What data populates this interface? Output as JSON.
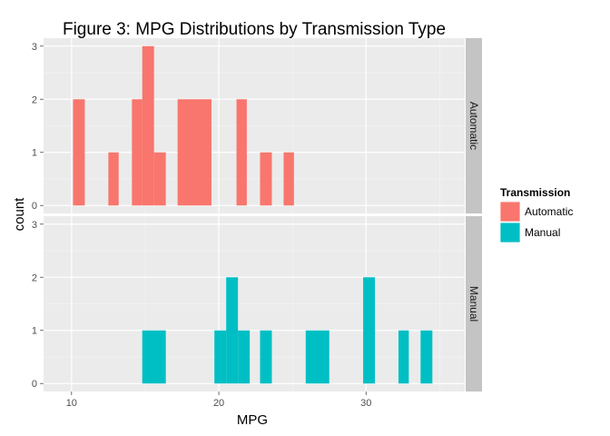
{
  "chart_data": {
    "type": "bar",
    "subtype": "faceted histogram",
    "title": "Figure 3: MPG Distributions by Transmission Type",
    "xlabel": "MPG",
    "ylabel": "count",
    "xlim": [
      8.1,
      36.7
    ],
    "ylim": [
      -0.15,
      3.15
    ],
    "x_ticks": [
      10,
      20,
      30
    ],
    "y_ticks": [
      0,
      1,
      2,
      3
    ],
    "grid": true,
    "bin_width": 0.78,
    "legend": {
      "title": "Transmission",
      "position": "right",
      "items": [
        {
          "label": "Automatic",
          "color": "#F8766D"
        },
        {
          "label": "Manual",
          "color": "#00BFC4"
        }
      ]
    },
    "facets": [
      {
        "label": "Automatic",
        "color": "#F8766D",
        "bins": [
          {
            "x0": 10.1,
            "x1": 10.9,
            "count": 2
          },
          {
            "x0": 12.5,
            "x1": 13.2,
            "count": 1
          },
          {
            "x0": 14.1,
            "x1": 14.8,
            "count": 2
          },
          {
            "x0": 14.8,
            "x1": 15.6,
            "count": 3
          },
          {
            "x0": 15.6,
            "x1": 16.4,
            "count": 1
          },
          {
            "x0": 17.2,
            "x1": 19.5,
            "count": 2
          },
          {
            "x0": 21.2,
            "x1": 21.9,
            "count": 2
          },
          {
            "x0": 22.8,
            "x1": 23.6,
            "count": 1
          },
          {
            "x0": 24.4,
            "x1": 25.1,
            "count": 1
          }
        ]
      },
      {
        "label": "Manual",
        "color": "#00BFC4",
        "bins": [
          {
            "x0": 14.8,
            "x1": 16.4,
            "count": 1
          },
          {
            "x0": 19.7,
            "x1": 20.5,
            "count": 1
          },
          {
            "x0": 20.5,
            "x1": 21.3,
            "count": 2
          },
          {
            "x0": 21.3,
            "x1": 22.1,
            "count": 1
          },
          {
            "x0": 22.8,
            "x1": 23.6,
            "count": 1
          },
          {
            "x0": 25.9,
            "x1": 27.5,
            "count": 1
          },
          {
            "x0": 29.8,
            "x1": 30.6,
            "count": 2
          },
          {
            "x0": 32.2,
            "x1": 32.9,
            "count": 1
          },
          {
            "x0": 33.7,
            "x1": 34.5,
            "count": 1
          }
        ]
      }
    ]
  }
}
